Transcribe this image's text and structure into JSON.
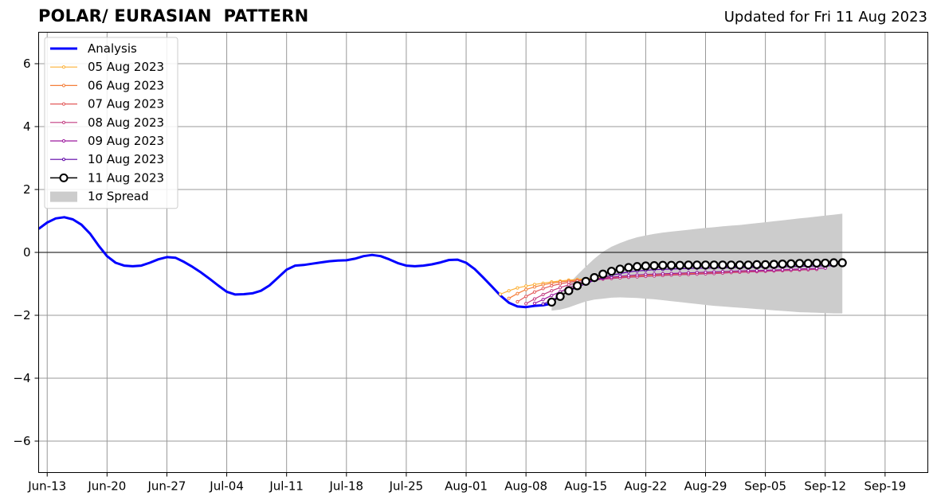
{
  "header": {
    "title": "POLAR/ EURASIAN  PATTERN",
    "updated": "Updated for Fri 11 Aug 2023"
  },
  "chart_data": {
    "type": "line",
    "title": "POLAR/ EURASIAN  PATTERN",
    "xlabel": "",
    "ylabel": "",
    "x_range": [
      "2023-06-12",
      "2023-09-24"
    ],
    "ylim": [
      -7,
      7
    ],
    "grid": true,
    "legend_placement": "top-left",
    "x_ticks": [
      "Jun-13",
      "Jun-20",
      "Jun-27",
      "Jul-04",
      "Jul-11",
      "Jul-18",
      "Jul-25",
      "Aug-01",
      "Aug-08",
      "Aug-15",
      "Aug-22",
      "Aug-29",
      "Sep-05",
      "Sep-12",
      "Sep-19"
    ],
    "y_ticks": [
      6,
      4,
      2,
      0,
      -2,
      -4,
      -6
    ],
    "y_tick_labels": [
      "6",
      "4",
      "2",
      "0",
      "−2",
      "−4",
      "−6"
    ],
    "analysis": {
      "name": "Analysis",
      "color": "#0000ff",
      "x": [
        "2023-06-12",
        "2023-06-13",
        "2023-06-14",
        "2023-06-15",
        "2023-06-16",
        "2023-06-17",
        "2023-06-18",
        "2023-06-19",
        "2023-06-20",
        "2023-06-21",
        "2023-06-22",
        "2023-06-23",
        "2023-06-24",
        "2023-06-25",
        "2023-06-26",
        "2023-06-27",
        "2023-06-28",
        "2023-06-29",
        "2023-06-30",
        "2023-07-01",
        "2023-07-02",
        "2023-07-03",
        "2023-07-04",
        "2023-07-05",
        "2023-07-06",
        "2023-07-07",
        "2023-07-08",
        "2023-07-09",
        "2023-07-10",
        "2023-07-11",
        "2023-07-12",
        "2023-07-13",
        "2023-07-14",
        "2023-07-15",
        "2023-07-16",
        "2023-07-17",
        "2023-07-18",
        "2023-07-19",
        "2023-07-20",
        "2023-07-21",
        "2023-07-22",
        "2023-07-23",
        "2023-07-24",
        "2023-07-25",
        "2023-07-26",
        "2023-07-27",
        "2023-07-28",
        "2023-07-29",
        "2023-07-30",
        "2023-07-31",
        "2023-08-01",
        "2023-08-02",
        "2023-08-03",
        "2023-08-04",
        "2023-08-05",
        "2023-08-06",
        "2023-08-07",
        "2023-08-08",
        "2023-08-09",
        "2023-08-10",
        "2023-08-11"
      ],
      "y": [
        0.75,
        0.95,
        1.08,
        1.12,
        1.05,
        0.88,
        0.6,
        0.22,
        -0.12,
        -0.33,
        -0.42,
        -0.44,
        -0.42,
        -0.33,
        -0.22,
        -0.15,
        -0.17,
        -0.3,
        -0.46,
        -0.64,
        -0.84,
        -1.05,
        -1.25,
        -1.34,
        -1.33,
        -1.3,
        -1.22,
        -1.05,
        -0.8,
        -0.55,
        -0.42,
        -0.4,
        -0.36,
        -0.32,
        -0.28,
        -0.26,
        -0.25,
        -0.2,
        -0.12,
        -0.08,
        -0.12,
        -0.22,
        -0.34,
        -0.42,
        -0.44,
        -0.42,
        -0.38,
        -0.32,
        -0.24,
        -0.23,
        -0.33,
        -0.53,
        -0.8,
        -1.08,
        -1.37,
        -1.6,
        -1.72,
        -1.74,
        -1.7,
        -1.68,
        -1.63
      ]
    },
    "forecasts": [
      {
        "name": "05 Aug 2023",
        "color": "#fcb036",
        "start": "2023-08-05",
        "y": [
          -1.33,
          -1.22,
          -1.13,
          -1.07,
          -1.02,
          -0.98,
          -0.94,
          -0.91,
          -0.88,
          -0.86,
          -0.84,
          -0.82,
          -0.8,
          -0.78,
          -0.77,
          -0.75,
          -0.74,
          -0.73,
          -0.71,
          -0.7,
          -0.69,
          -0.68,
          -0.67,
          -0.66,
          -0.65,
          -0.64,
          -0.63,
          -0.62,
          -0.61,
          -0.6,
          -0.59,
          -0.58,
          -0.57,
          -0.56,
          -0.55
        ]
      },
      {
        "name": "06 Aug 2023",
        "color": "#f47f3a",
        "start": "2023-08-06",
        "y": [
          -1.46,
          -1.31,
          -1.18,
          -1.1,
          -1.03,
          -0.98,
          -0.94,
          -0.91,
          -0.88,
          -0.86,
          -0.84,
          -0.82,
          -0.8,
          -0.79,
          -0.77,
          -0.76,
          -0.74,
          -0.73,
          -0.72,
          -0.71,
          -0.69,
          -0.68,
          -0.67,
          -0.66,
          -0.65,
          -0.64,
          -0.63,
          -0.62,
          -0.61,
          -0.6,
          -0.59,
          -0.58,
          -0.57,
          -0.56,
          -0.55
        ]
      },
      {
        "name": "07 Aug 2023",
        "color": "#e35a5a",
        "start": "2023-08-07",
        "y": [
          -1.57,
          -1.4,
          -1.26,
          -1.15,
          -1.06,
          -1.0,
          -0.95,
          -0.91,
          -0.88,
          -0.86,
          -0.84,
          -0.82,
          -0.8,
          -0.79,
          -0.77,
          -0.76,
          -0.74,
          -0.73,
          -0.72,
          -0.71,
          -0.7,
          -0.68,
          -0.67,
          -0.66,
          -0.65,
          -0.64,
          -0.63,
          -0.62,
          -0.61,
          -0.6,
          -0.59,
          -0.58,
          -0.57,
          -0.56,
          -0.55
        ]
      },
      {
        "name": "08 Aug 2023",
        "color": "#c23c81",
        "start": "2023-08-08",
        "y": [
          -1.63,
          -1.48,
          -1.34,
          -1.22,
          -1.12,
          -1.03,
          -0.97,
          -0.92,
          -0.88,
          -0.85,
          -0.83,
          -0.81,
          -0.79,
          -0.78,
          -0.76,
          -0.75,
          -0.73,
          -0.72,
          -0.71,
          -0.7,
          -0.69,
          -0.68,
          -0.67,
          -0.66,
          -0.64,
          -0.63,
          -0.62,
          -0.61,
          -0.6,
          -0.59,
          -0.58,
          -0.57,
          -0.56,
          -0.55,
          -0.54
        ]
      },
      {
        "name": "09 Aug 2023",
        "color": "#9c179e",
        "start": "2023-08-09",
        "y": [
          -1.62,
          -1.5,
          -1.37,
          -1.25,
          -1.13,
          -1.03,
          -0.95,
          -0.88,
          -0.83,
          -0.79,
          -0.76,
          -0.74,
          -0.72,
          -0.7,
          -0.69,
          -0.68,
          -0.67,
          -0.66,
          -0.65,
          -0.64,
          -0.63,
          -0.62,
          -0.61,
          -0.6,
          -0.59,
          -0.58,
          -0.58,
          -0.57,
          -0.56,
          -0.55,
          -0.54,
          -0.53,
          -0.52,
          -0.51,
          -0.5
        ]
      },
      {
        "name": "10 Aug 2023",
        "color": "#5c01a6",
        "start": "2023-08-10",
        "y": [
          -1.64,
          -1.52,
          -1.38,
          -1.24,
          -1.11,
          -0.99,
          -0.89,
          -0.8,
          -0.73,
          -0.67,
          -0.62,
          -0.59,
          -0.57,
          -0.55,
          -0.54,
          -0.53,
          -0.52,
          -0.51,
          -0.5,
          -0.5,
          -0.49,
          -0.49,
          -0.48,
          -0.48,
          -0.47,
          -0.47,
          -0.46,
          -0.46,
          -0.45,
          -0.45,
          -0.44,
          -0.44,
          -0.43,
          -0.43,
          -0.42
        ]
      },
      {
        "name": "11 Aug 2023",
        "color": "#000000",
        "start": "2023-08-11",
        "y": [
          -1.58,
          -1.4,
          -1.22,
          -1.06,
          -0.92,
          -0.8,
          -0.69,
          -0.6,
          -0.53,
          -0.48,
          -0.45,
          -0.43,
          -0.42,
          -0.41,
          -0.41,
          -0.41,
          -0.4,
          -0.4,
          -0.4,
          -0.4,
          -0.4,
          -0.4,
          -0.4,
          -0.4,
          -0.39,
          -0.39,
          -0.38,
          -0.37,
          -0.36,
          -0.35,
          -0.35,
          -0.34,
          -0.34,
          -0.33,
          -0.33
        ]
      }
    ],
    "spread": {
      "name": "1σ Spread",
      "color": "#cccccc",
      "start": "2023-08-11",
      "upper": [
        -1.58,
        -1.3,
        -1.0,
        -0.72,
        -0.45,
        -0.2,
        0.02,
        0.18,
        0.3,
        0.4,
        0.48,
        0.54,
        0.59,
        0.63,
        0.66,
        0.69,
        0.72,
        0.75,
        0.78,
        0.8,
        0.83,
        0.85,
        0.87,
        0.9,
        0.93,
        0.96,
        0.99,
        1.02,
        1.05,
        1.08,
        1.11,
        1.14,
        1.17,
        1.2,
        1.23
      ],
      "lower": [
        -1.85,
        -1.82,
        -1.75,
        -1.65,
        -1.56,
        -1.5,
        -1.47,
        -1.44,
        -1.43,
        -1.44,
        -1.45,
        -1.47,
        -1.49,
        -1.52,
        -1.55,
        -1.58,
        -1.61,
        -1.64,
        -1.67,
        -1.7,
        -1.72,
        -1.74,
        -1.76,
        -1.78,
        -1.8,
        -1.82,
        -1.84,
        -1.86,
        -1.88,
        -1.9,
        -1.91,
        -1.92,
        -1.93,
        -1.94,
        -1.94
      ]
    }
  }
}
